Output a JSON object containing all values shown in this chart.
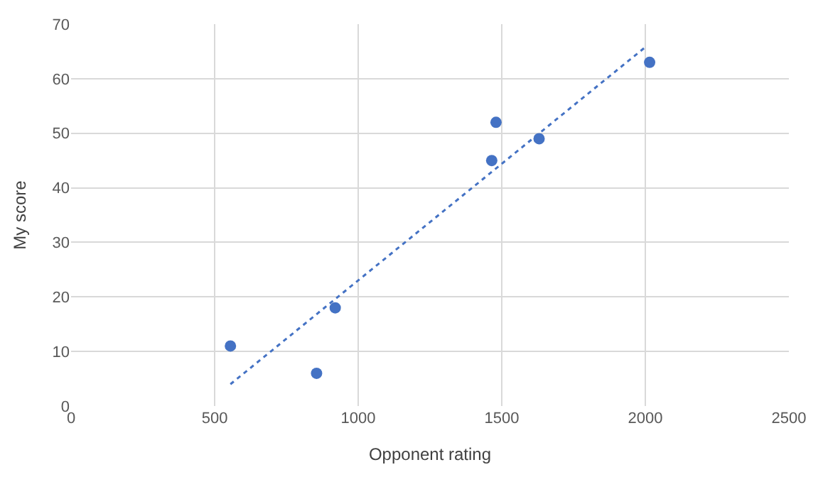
{
  "chart_data": {
    "type": "scatter",
    "xlabel": "Opponent rating",
    "ylabel": "My score",
    "xlim": [
      0,
      2500
    ],
    "xticks": [
      0,
      500,
      1000,
      1500,
      2000,
      2500
    ],
    "ylim": [
      0,
      70
    ],
    "yticks": [
      0,
      10,
      20,
      30,
      40,
      50,
      60,
      70
    ],
    "grid": true,
    "marker": "circle",
    "series": [
      {
        "color": "#4472c4",
        "x": [
          555,
          855,
          920,
          1465,
          1480,
          1630,
          2015
        ],
        "values": [
          11,
          6,
          18,
          45,
          52,
          49,
          63
        ]
      },
      {
        "type": "line",
        "color": "#4472c4",
        "line_style": "dotted",
        "marker": "none",
        "x": [
          555,
          2005
        ],
        "values": [
          4,
          66
        ]
      }
    ]
  }
}
